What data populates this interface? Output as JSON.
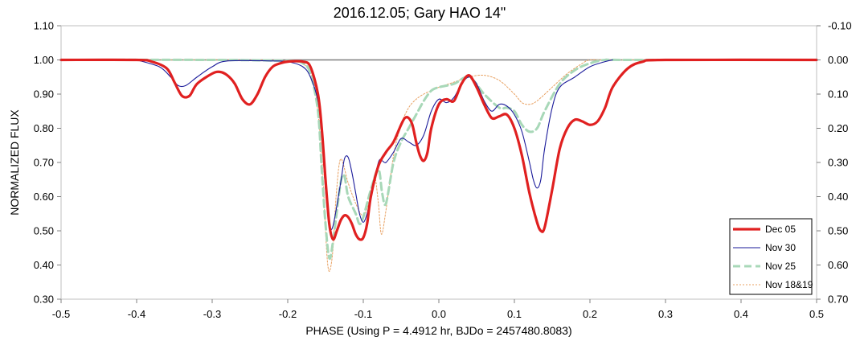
{
  "chart_data": {
    "type": "line",
    "title": "2016.12.05; Gary HAO 14\"",
    "xlabel": "PHASE (Using P = 4.4912 hr, BJDo = 2457480.8083)",
    "ylabel": "NORMALIZED FLUX",
    "xlim": [
      -0.5,
      0.5
    ],
    "ylim": [
      0.3,
      1.1
    ],
    "y2lim": [
      0.7,
      -0.1
    ],
    "xticks": [
      "-0.5",
      "-0.4",
      "-0.3",
      "-0.2",
      "-0.1",
      "0.0",
      "0.1",
      "0.2",
      "0.3",
      "0.4",
      "0.5"
    ],
    "yticks": [
      "0.30",
      "0.40",
      "0.50",
      "0.60",
      "0.70",
      "0.80",
      "0.90",
      "1.00",
      "1.10"
    ],
    "y2ticks": [
      "0.70",
      "0.60",
      "0.50",
      "0.40",
      "0.30",
      "0.20",
      "0.10",
      "0.00",
      "-0.10"
    ],
    "grid": false,
    "legend_position": "bottom-right",
    "reference_line": 1.0,
    "series": [
      {
        "name": "Nov 18&19",
        "color": "#E8A060",
        "style": "dotted",
        "x": [
          -0.5,
          -0.4,
          -0.25,
          -0.2,
          -0.18,
          -0.165,
          -0.155,
          -0.15,
          -0.147,
          -0.144,
          -0.14,
          -0.136,
          -0.13,
          -0.12,
          -0.11,
          -0.1,
          -0.09,
          -0.085,
          -0.08,
          -0.076,
          -0.07,
          -0.06,
          -0.05,
          -0.04,
          -0.03,
          -0.02,
          -0.01,
          0.0,
          0.02,
          0.04,
          0.06,
          0.08,
          0.1,
          0.11,
          0.12,
          0.13,
          0.15,
          0.17,
          0.19,
          0.2,
          0.22,
          0.3,
          0.5
        ],
        "y": [
          1.0,
          1.0,
          1.0,
          0.997,
          0.99,
          0.93,
          0.72,
          0.5,
          0.4,
          0.385,
          0.45,
          0.6,
          0.71,
          0.64,
          0.58,
          0.545,
          0.6,
          0.66,
          0.58,
          0.49,
          0.56,
          0.72,
          0.81,
          0.86,
          0.885,
          0.9,
          0.91,
          0.92,
          0.935,
          0.95,
          0.955,
          0.94,
          0.9,
          0.875,
          0.87,
          0.88,
          0.92,
          0.96,
          0.99,
          1.0,
          1.0,
          1.0,
          1.0
        ]
      },
      {
        "name": "Nov 25",
        "color": "#A8D8B8",
        "style": "dashed",
        "x": [
          -0.5,
          -0.3,
          -0.2,
          -0.18,
          -0.17,
          -0.16,
          -0.155,
          -0.15,
          -0.145,
          -0.14,
          -0.13,
          -0.125,
          -0.12,
          -0.11,
          -0.105,
          -0.1,
          -0.09,
          -0.08,
          -0.075,
          -0.07,
          -0.06,
          -0.05,
          -0.04,
          -0.03,
          -0.02,
          -0.01,
          0.0,
          0.02,
          0.04,
          0.06,
          0.08,
          0.09,
          0.1,
          0.11,
          0.12,
          0.13,
          0.14,
          0.16,
          0.18,
          0.2,
          0.22,
          0.25,
          0.5
        ],
        "y": [
          1.0,
          1.0,
          0.997,
          0.99,
          0.96,
          0.85,
          0.68,
          0.52,
          0.42,
          0.47,
          0.64,
          0.66,
          0.6,
          0.55,
          0.52,
          0.54,
          0.62,
          0.68,
          0.61,
          0.58,
          0.7,
          0.76,
          0.8,
          0.84,
          0.88,
          0.91,
          0.92,
          0.93,
          0.95,
          0.9,
          0.86,
          0.86,
          0.85,
          0.81,
          0.79,
          0.8,
          0.85,
          0.93,
          0.97,
          0.99,
          1.0,
          1.0,
          1.0
        ]
      },
      {
        "name": "Nov 30",
        "color": "#1A1A9A",
        "style": "solid",
        "x": [
          -0.4,
          -0.37,
          -0.355,
          -0.345,
          -0.335,
          -0.32,
          -0.3,
          -0.28,
          -0.22,
          -0.2,
          -0.18,
          -0.17,
          -0.16,
          -0.155,
          -0.15,
          -0.145,
          -0.14,
          -0.13,
          -0.125,
          -0.12,
          -0.115,
          -0.11,
          -0.105,
          -0.1,
          -0.095,
          -0.09,
          -0.08,
          -0.075,
          -0.07,
          -0.06,
          -0.05,
          -0.04,
          -0.03,
          -0.02,
          -0.01,
          0.0,
          0.01,
          0.02,
          0.03,
          0.04,
          0.05,
          0.06,
          0.07,
          0.08,
          0.09,
          0.1,
          0.11,
          0.12,
          0.125,
          0.13,
          0.135,
          0.14,
          0.15,
          0.16,
          0.18,
          0.2,
          0.22,
          0.23
        ],
        "y": [
          1.0,
          0.98,
          0.95,
          0.925,
          0.925,
          0.95,
          0.98,
          0.997,
          0.997,
          0.995,
          0.98,
          0.95,
          0.88,
          0.78,
          0.62,
          0.52,
          0.515,
          0.64,
          0.71,
          0.715,
          0.67,
          0.61,
          0.55,
          0.525,
          0.55,
          0.6,
          0.7,
          0.705,
          0.7,
          0.73,
          0.77,
          0.76,
          0.75,
          0.78,
          0.85,
          0.885,
          0.875,
          0.89,
          0.93,
          0.95,
          0.93,
          0.88,
          0.85,
          0.87,
          0.865,
          0.84,
          0.79,
          0.7,
          0.65,
          0.625,
          0.65,
          0.74,
          0.86,
          0.92,
          0.95,
          0.98,
          0.995,
          1.0
        ]
      },
      {
        "name": "Dec 05",
        "color": "#E02020",
        "style": "solid",
        "x": [
          -0.5,
          -0.4,
          -0.38,
          -0.36,
          -0.35,
          -0.34,
          -0.33,
          -0.32,
          -0.3,
          -0.29,
          -0.28,
          -0.27,
          -0.26,
          -0.25,
          -0.24,
          -0.23,
          -0.22,
          -0.21,
          -0.2,
          -0.18,
          -0.17,
          -0.16,
          -0.155,
          -0.15,
          -0.145,
          -0.14,
          -0.135,
          -0.13,
          -0.125,
          -0.12,
          -0.115,
          -0.11,
          -0.105,
          -0.1,
          -0.095,
          -0.09,
          -0.08,
          -0.07,
          -0.06,
          -0.05,
          -0.045,
          -0.04,
          -0.035,
          -0.03,
          -0.025,
          -0.02,
          -0.015,
          -0.01,
          0.0,
          0.01,
          0.02,
          0.03,
          0.04,
          0.05,
          0.06,
          0.07,
          0.08,
          0.09,
          0.1,
          0.11,
          0.12,
          0.13,
          0.135,
          0.14,
          0.15,
          0.16,
          0.17,
          0.18,
          0.19,
          0.2,
          0.21,
          0.22,
          0.23,
          0.25,
          0.27,
          0.3,
          0.5
        ],
        "y": [
          1.0,
          1.0,
          0.995,
          0.975,
          0.935,
          0.895,
          0.895,
          0.93,
          0.96,
          0.965,
          0.955,
          0.93,
          0.885,
          0.87,
          0.9,
          0.95,
          0.98,
          0.99,
          0.995,
          0.995,
          0.98,
          0.9,
          0.8,
          0.65,
          0.52,
          0.475,
          0.5,
          0.53,
          0.545,
          0.54,
          0.52,
          0.49,
          0.475,
          0.48,
          0.52,
          0.6,
          0.69,
          0.73,
          0.76,
          0.81,
          0.83,
          0.83,
          0.81,
          0.76,
          0.72,
          0.705,
          0.73,
          0.8,
          0.87,
          0.885,
          0.88,
          0.93,
          0.955,
          0.92,
          0.87,
          0.83,
          0.835,
          0.84,
          0.8,
          0.72,
          0.61,
          0.525,
          0.5,
          0.51,
          0.62,
          0.74,
          0.8,
          0.825,
          0.82,
          0.81,
          0.82,
          0.86,
          0.92,
          0.975,
          0.995,
          1.0,
          1.0
        ]
      }
    ],
    "legend_order": [
      "Dec 05",
      "Nov 30",
      "Nov 25",
      "Nov 18&19"
    ]
  }
}
